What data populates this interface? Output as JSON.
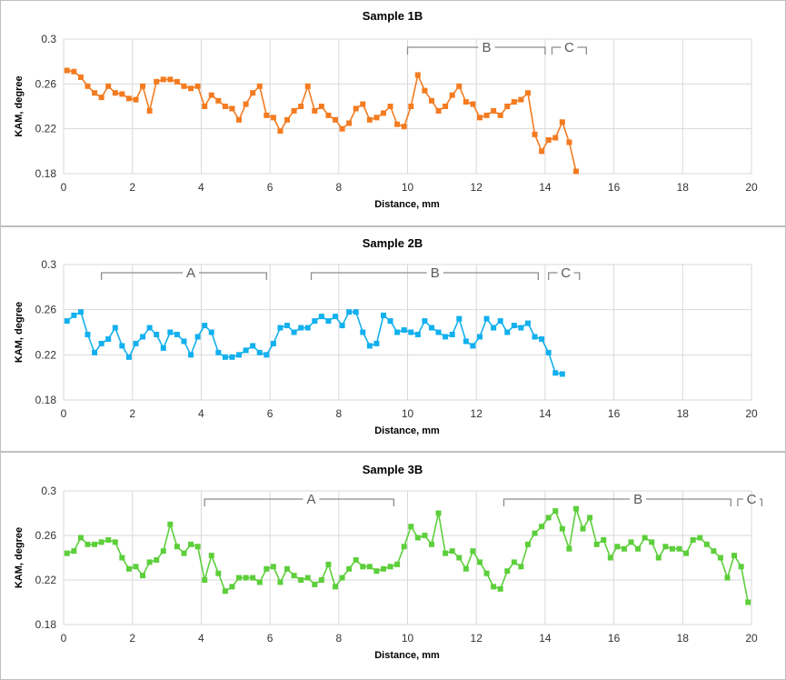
{
  "chart_data": [
    {
      "type": "line",
      "title": "Sample 1B",
      "xlabel": "Distance, mm",
      "ylabel": "KAM, degree",
      "xlim": [
        0,
        20
      ],
      "ylim": [
        0.18,
        0.3
      ],
      "xticks": [
        "0",
        "2",
        "4",
        "6",
        "8",
        "10",
        "12",
        "14",
        "16",
        "18",
        "20"
      ],
      "yticks": [
        "0.18",
        "0.22",
        "0.26",
        "0.3"
      ],
      "grid": true,
      "color": "#f47b20",
      "x_start": 0.1,
      "x_step": 0.2,
      "values": [
        0.272,
        0.271,
        0.266,
        0.258,
        0.252,
        0.248,
        0.258,
        0.252,
        0.251,
        0.247,
        0.246,
        0.258,
        0.236,
        0.262,
        0.264,
        0.264,
        0.262,
        0.258,
        0.256,
        0.258,
        0.24,
        0.25,
        0.245,
        0.24,
        0.238,
        0.228,
        0.242,
        0.252,
        0.258,
        0.232,
        0.23,
        0.218,
        0.228,
        0.236,
        0.24,
        0.258,
        0.236,
        0.24,
        0.232,
        0.228,
        0.22,
        0.225,
        0.238,
        0.242,
        0.228,
        0.23,
        0.234,
        0.24,
        0.224,
        0.222,
        0.24,
        0.268,
        0.254,
        0.245,
        0.236,
        0.24,
        0.25,
        0.258,
        0.244,
        0.242,
        0.23,
        0.232,
        0.236,
        0.232,
        0.24,
        0.244,
        0.246,
        0.252,
        0.215,
        0.2,
        0.21,
        0.212,
        0.226,
        0.208,
        0.182
      ],
      "annotations": [
        {
          "label": "B",
          "x_from": 10.0,
          "x_to": 14.0,
          "label_x": 12.3
        },
        {
          "label": "C",
          "x_from": 14.2,
          "x_to": 15.2,
          "label_x": 14.7
        }
      ]
    },
    {
      "type": "line",
      "title": "Sample 2B",
      "xlabel": "Distance, mm",
      "ylabel": "KAM, degree",
      "xlim": [
        0,
        20
      ],
      "ylim": [
        0.18,
        0.3
      ],
      "xticks": [
        "0",
        "2",
        "4",
        "6",
        "8",
        "10",
        "12",
        "14",
        "16",
        "18",
        "20"
      ],
      "yticks": [
        "0.18",
        "0.22",
        "0.26",
        "0.3"
      ],
      "grid": true,
      "color": "#12b0ee",
      "x_start": 0.1,
      "x_step": 0.2,
      "values": [
        0.25,
        0.255,
        0.258,
        0.238,
        0.222,
        0.23,
        0.234,
        0.244,
        0.228,
        0.218,
        0.23,
        0.236,
        0.244,
        0.238,
        0.226,
        0.24,
        0.238,
        0.232,
        0.22,
        0.236,
        0.246,
        0.24,
        0.222,
        0.218,
        0.218,
        0.22,
        0.224,
        0.228,
        0.222,
        0.22,
        0.23,
        0.244,
        0.246,
        0.24,
        0.244,
        0.244,
        0.25,
        0.254,
        0.25,
        0.254,
        0.246,
        0.258,
        0.258,
        0.24,
        0.228,
        0.23,
        0.255,
        0.25,
        0.24,
        0.242,
        0.24,
        0.238,
        0.25,
        0.244,
        0.24,
        0.236,
        0.238,
        0.252,
        0.232,
        0.228,
        0.236,
        0.252,
        0.244,
        0.25,
        0.24,
        0.246,
        0.244,
        0.248,
        0.236,
        0.234,
        0.222,
        0.204,
        0.203
      ],
      "annotations": [
        {
          "label": "A",
          "x_from": 1.1,
          "x_to": 5.9,
          "label_x": 3.7
        },
        {
          "label": "B",
          "x_from": 7.2,
          "x_to": 13.8,
          "label_x": 10.8
        },
        {
          "label": "C",
          "x_from": 14.1,
          "x_to": 15.0,
          "label_x": 14.6
        }
      ]
    },
    {
      "type": "line",
      "title": "Sample 3B",
      "xlabel": "Distance, mm",
      "ylabel": "KAM, degree",
      "xlim": [
        0,
        20
      ],
      "ylim": [
        0.18,
        0.3
      ],
      "xticks": [
        "0",
        "2",
        "4",
        "6",
        "8",
        "10",
        "12",
        "14",
        "16",
        "18",
        "20"
      ],
      "yticks": [
        "0.18",
        "0.22",
        "0.26",
        "0.3"
      ],
      "grid": true,
      "color": "#5ccf3a",
      "x_start": 0.1,
      "x_step": 0.2,
      "values": [
        0.244,
        0.246,
        0.258,
        0.252,
        0.252,
        0.254,
        0.256,
        0.254,
        0.24,
        0.23,
        0.232,
        0.224,
        0.236,
        0.238,
        0.246,
        0.27,
        0.25,
        0.244,
        0.252,
        0.25,
        0.22,
        0.242,
        0.226,
        0.21,
        0.214,
        0.222,
        0.222,
        0.222,
        0.218,
        0.23,
        0.232,
        0.218,
        0.23,
        0.224,
        0.22,
        0.222,
        0.216,
        0.22,
        0.234,
        0.214,
        0.222,
        0.23,
        0.238,
        0.232,
        0.232,
        0.228,
        0.23,
        0.232,
        0.234,
        0.25,
        0.268,
        0.258,
        0.26,
        0.252,
        0.28,
        0.244,
        0.246,
        0.24,
        0.23,
        0.246,
        0.236,
        0.226,
        0.214,
        0.212,
        0.228,
        0.236,
        0.232,
        0.252,
        0.262,
        0.268,
        0.276,
        0.282,
        0.266,
        0.248,
        0.284,
        0.266,
        0.276,
        0.252,
        0.256,
        0.24,
        0.25,
        0.248,
        0.254,
        0.248,
        0.258,
        0.254,
        0.24,
        0.25,
        0.248,
        0.248,
        0.244,
        0.256,
        0.258,
        0.252,
        0.246,
        0.24,
        0.222,
        0.242,
        0.232,
        0.2
      ],
      "annotations": [
        {
          "label": "A",
          "x_from": 4.1,
          "x_to": 9.6,
          "label_x": 7.2
        },
        {
          "label": "B",
          "x_from": 12.8,
          "x_to": 19.4,
          "label_x": 16.7
        },
        {
          "label": "C",
          "x_from": 19.6,
          "x_to": 20.3,
          "label_x": 20.0
        }
      ]
    }
  ]
}
